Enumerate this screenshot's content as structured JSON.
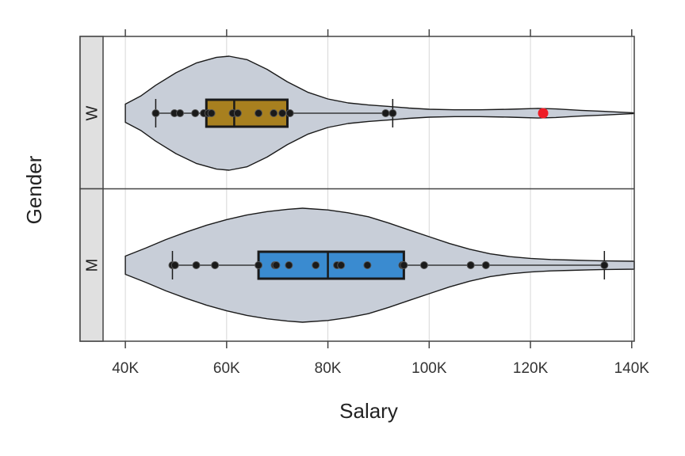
{
  "chart_data": {
    "type": "violin-box",
    "xlabel": "Salary",
    "ylabel": "Gender",
    "xlim": [
      35600,
      140500
    ],
    "xticks": [
      {
        "value": 40000,
        "label": "40K"
      },
      {
        "value": 60000,
        "label": "60K"
      },
      {
        "value": 80000,
        "label": "80K"
      },
      {
        "value": 100000,
        "label": "100K"
      },
      {
        "value": 120000,
        "label": "120K"
      },
      {
        "value": 140000,
        "label": "140K"
      }
    ],
    "grid": true,
    "groups": [
      {
        "label": "W",
        "box_color": "#a8801f",
        "box": {
          "min": 46000,
          "q1": 56000,
          "median": 61500,
          "q3": 72000,
          "max": 92800
        },
        "points": [
          46000,
          49700,
          50800,
          53800,
          55500,
          56400,
          57000,
          61200,
          62200,
          66300,
          69300,
          71000,
          72500,
          91400,
          92800
        ],
        "outliers": [
          {
            "value": 122500,
            "color": "#ee1c25"
          }
        ],
        "violin": [
          [
            40000,
            0.16
          ],
          [
            43000,
            0.3
          ],
          [
            46000,
            0.49
          ],
          [
            50000,
            0.71
          ],
          [
            54000,
            0.88
          ],
          [
            58000,
            0.98
          ],
          [
            60500,
            1.0
          ],
          [
            64000,
            0.94
          ],
          [
            68000,
            0.77
          ],
          [
            72000,
            0.55
          ],
          [
            76000,
            0.37
          ],
          [
            80000,
            0.25
          ],
          [
            84000,
            0.18
          ],
          [
            88000,
            0.145
          ],
          [
            92000,
            0.12
          ],
          [
            96000,
            0.09
          ],
          [
            100000,
            0.07
          ],
          [
            105000,
            0.06
          ],
          [
            110000,
            0.06
          ],
          [
            116000,
            0.07
          ],
          [
            121500,
            0.085
          ],
          [
            125000,
            0.075
          ],
          [
            130000,
            0.05
          ],
          [
            135000,
            0.03
          ],
          [
            140500,
            0.005
          ]
        ]
      },
      {
        "label": "M",
        "box_color": "#3a8bd0",
        "box": {
          "min": 49300,
          "q1": 66300,
          "median": 80000,
          "q3": 95000,
          "max": 134600
        },
        "points": [
          49300,
          49800,
          54000,
          57700,
          66300,
          69500,
          69800,
          72300,
          77600,
          81800,
          82600,
          87800,
          94700,
          95000,
          99000,
          108200,
          111200,
          134600
        ],
        "outliers": [],
        "violin": [
          [
            40000,
            0.16
          ],
          [
            44000,
            0.3
          ],
          [
            48000,
            0.45
          ],
          [
            52000,
            0.58
          ],
          [
            56000,
            0.7
          ],
          [
            60000,
            0.8
          ],
          [
            64000,
            0.88
          ],
          [
            68000,
            0.94
          ],
          [
            72000,
            0.98
          ],
          [
            75000,
            1.0
          ],
          [
            80000,
            0.97
          ],
          [
            84000,
            0.92
          ],
          [
            88000,
            0.85
          ],
          [
            92000,
            0.74
          ],
          [
            96000,
            0.62
          ],
          [
            100000,
            0.5
          ],
          [
            104000,
            0.38
          ],
          [
            108000,
            0.28
          ],
          [
            112000,
            0.2
          ],
          [
            116000,
            0.15
          ],
          [
            120000,
            0.12
          ],
          [
            124000,
            0.1
          ],
          [
            128000,
            0.09
          ],
          [
            132000,
            0.08
          ],
          [
            135000,
            0.075
          ],
          [
            140500,
            0.07
          ]
        ]
      }
    ]
  }
}
